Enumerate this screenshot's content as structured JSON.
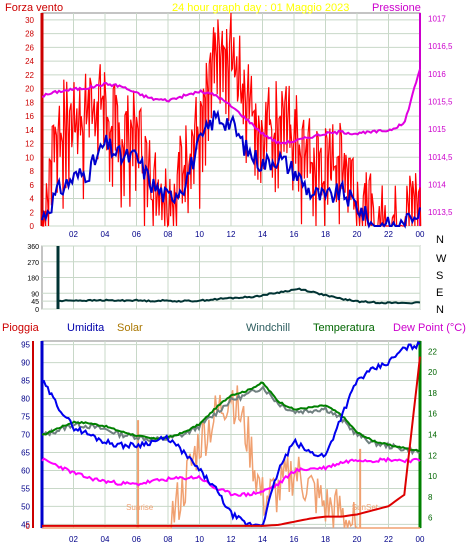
{
  "top_chart": {
    "left_label": "Forza vento",
    "center_label": "24 hour graph day : 01 Maggio 2023",
    "right_label": "Pressione",
    "left_ticks": [
      "0",
      "2",
      "4",
      "6",
      "8",
      "10",
      "12",
      "14",
      "16",
      "18",
      "20",
      "22",
      "24",
      "26",
      "28",
      "30"
    ],
    "right_ticks": [
      "1013,5",
      "1014",
      "1014,5",
      "1015",
      "1015,5",
      "1016",
      "1016,5",
      "1017"
    ],
    "x_ticks": [
      "02",
      "04",
      "06",
      "08",
      "10",
      "12",
      "14",
      "16",
      "18",
      "20",
      "22",
      "00"
    ]
  },
  "dir_chart": {
    "left_ticks": [
      "0",
      "45",
      "90",
      "180",
      "270",
      "360"
    ],
    "right_letters": [
      "N",
      "W",
      "S",
      "E",
      "N"
    ]
  },
  "bottom_chart": {
    "labels": {
      "pioggia": "Pioggia",
      "umidita": "Umidita",
      "solar": "Solar",
      "windchill": "Windchill",
      "temperatura": "Temperatura",
      "dewpoint": "Dew Point (°C)"
    },
    "left_ticks": [
      "0",
      "45",
      "50",
      "55",
      "60",
      "65",
      "70",
      "75",
      "80",
      "85",
      "90",
      "95"
    ],
    "right_ticks": [
      "6",
      "8",
      "10",
      "12",
      "14",
      "16",
      "18",
      "20",
      "22"
    ],
    "x_ticks": [
      "02",
      "04",
      "06",
      "08",
      "10",
      "12",
      "14",
      "16",
      "18",
      "20",
      "22",
      "00"
    ],
    "sunrise": "Sunrise",
    "sunset": "SunSet"
  },
  "colors": {
    "wind_gust": "#ff0000",
    "wind_avg": "#0000cc",
    "pressure": "#e000e0",
    "direction": "#003333",
    "humidity": "#0000ee",
    "solar": "#f0a070",
    "windchill": "#708080",
    "temperature": "#008000",
    "dewpoint": "#ff00ff",
    "rain": "#dd0000"
  },
  "chart_data": [
    {
      "type": "line",
      "xlabel": "",
      "ylabel": "Forza vento",
      "x": [
        0,
        1,
        2,
        3,
        4,
        5,
        6,
        7,
        8,
        9,
        10,
        11,
        12,
        13,
        14,
        15,
        16,
        17,
        18,
        19,
        20,
        21,
        22,
        23,
        24
      ],
      "ylim": [
        0,
        31
      ],
      "y2lim": [
        1013.25,
        1017.1
      ],
      "series": [
        {
          "name": "Forza vento",
          "axis": "left",
          "values": [
            2,
            17,
            16,
            19,
            19,
            14,
            15,
            8,
            5,
            10,
            16,
            25,
            27,
            20,
            15,
            18,
            15,
            11,
            10,
            12,
            7,
            2,
            1,
            2,
            6
          ]
        },
        {
          "name": "",
          "axis": "left",
          "values": [
            1,
            5,
            7,
            8,
            12,
            10,
            10,
            6,
            4,
            6,
            12,
            16,
            15,
            11,
            9,
            10,
            8,
            5,
            4,
            5,
            3,
            0,
            0,
            0,
            3
          ]
        },
        {
          "name": "Pressione",
          "axis": "right",
          "values": [
            1015.6,
            1015.68,
            1015.72,
            1015.75,
            1015.82,
            1015.78,
            1015.65,
            1015.55,
            1015.52,
            1015.6,
            1015.68,
            1015.62,
            1015.42,
            1015.18,
            1014.92,
            1014.75,
            1014.78,
            1014.86,
            1014.92,
            1014.95,
            1014.92,
            1014.95,
            1014.98,
            1015.1,
            1016.1
          ]
        }
      ]
    },
    {
      "type": "line",
      "xlabel": "",
      "ylabel": "",
      "x": [
        0,
        1,
        2,
        3,
        4,
        5,
        6,
        7,
        8,
        9,
        10,
        11,
        12,
        13,
        14,
        15,
        16,
        17,
        18,
        19,
        20,
        21,
        22,
        23,
        24
      ],
      "ylim": [
        0,
        360
      ],
      "series": [
        {
          "name": "",
          "values": [
            45,
            50,
            48,
            50,
            48,
            50,
            46,
            48,
            45,
            46,
            52,
            60,
            65,
            70,
            85,
            100,
            115,
            95,
            72,
            55,
            42,
            38,
            35,
            35,
            35
          ]
        }
      ]
    },
    {
      "type": "line",
      "xlabel": "",
      "ylabel": "Umidita",
      "x": [
        0,
        1,
        2,
        3,
        4,
        5,
        6,
        7,
        8,
        9,
        10,
        11,
        12,
        13,
        14,
        15,
        16,
        17,
        18,
        19,
        20,
        21,
        22,
        23,
        24
      ],
      "ylim": [
        44,
        96
      ],
      "y2lim": [
        5,
        23
      ],
      "series": [
        {
          "name": "Umidita",
          "axis": "left",
          "values": [
            85,
            78,
            72,
            70,
            68,
            67,
            67,
            68,
            69,
            65,
            60,
            55,
            48,
            45,
            45,
            60,
            68,
            65,
            64,
            75,
            85,
            88,
            90,
            94,
            95
          ]
        },
        {
          "name": "Temperatura",
          "axis": "right",
          "values": [
            13.9,
            14.6,
            15.2,
            15.1,
            14.8,
            14.3,
            13.9,
            13.6,
            13.7,
            14.2,
            15.0,
            16.5,
            17.8,
            18.2,
            19.0,
            17.2,
            16.4,
            16.6,
            16.8,
            15.9,
            14.2,
            13.4,
            13.0,
            12.7,
            12.4
          ]
        },
        {
          "name": "Windchill",
          "axis": "right",
          "values": [
            13.9,
            14.4,
            15.0,
            14.8,
            14.5,
            14.0,
            13.8,
            13.5,
            13.6,
            14.0,
            14.8,
            16.0,
            17.3,
            17.8,
            18.6,
            17.0,
            16.2,
            16.3,
            16.5,
            15.5,
            14.0,
            13.2,
            12.9,
            12.6,
            12.3
          ]
        },
        {
          "name": "Dew Point",
          "axis": "right",
          "values": [
            11.6,
            11.0,
            10.3,
            9.8,
            9.5,
            9.3,
            9.2,
            9.5,
            9.7,
            9.8,
            9.9,
            8.8,
            8.3,
            8.2,
            8.5,
            9.2,
            10.5,
            10.7,
            10.8,
            11.3,
            11.6,
            11.5,
            11.6,
            11.5,
            11.5
          ]
        },
        {
          "name": "Solar",
          "axis": "left",
          "values": [
            44,
            44,
            44,
            44,
            44,
            44,
            44,
            44,
            44,
            55,
            68,
            75,
            82,
            70,
            52,
            54,
            60,
            55,
            50,
            48,
            44,
            44,
            44,
            44,
            44
          ]
        },
        {
          "name": "Pioggia",
          "axis": "right",
          "values": [
            5.2,
            5.2,
            5.2,
            5.2,
            5.2,
            5.2,
            5.2,
            5.2,
            5.2,
            5.2,
            5.2,
            5.2,
            5.2,
            5.2,
            5.2,
            5.3,
            5.6,
            5.9,
            6.1,
            6.1,
            6.3,
            6.7,
            7.1,
            8.2,
            21.5
          ]
        }
      ]
    }
  ]
}
